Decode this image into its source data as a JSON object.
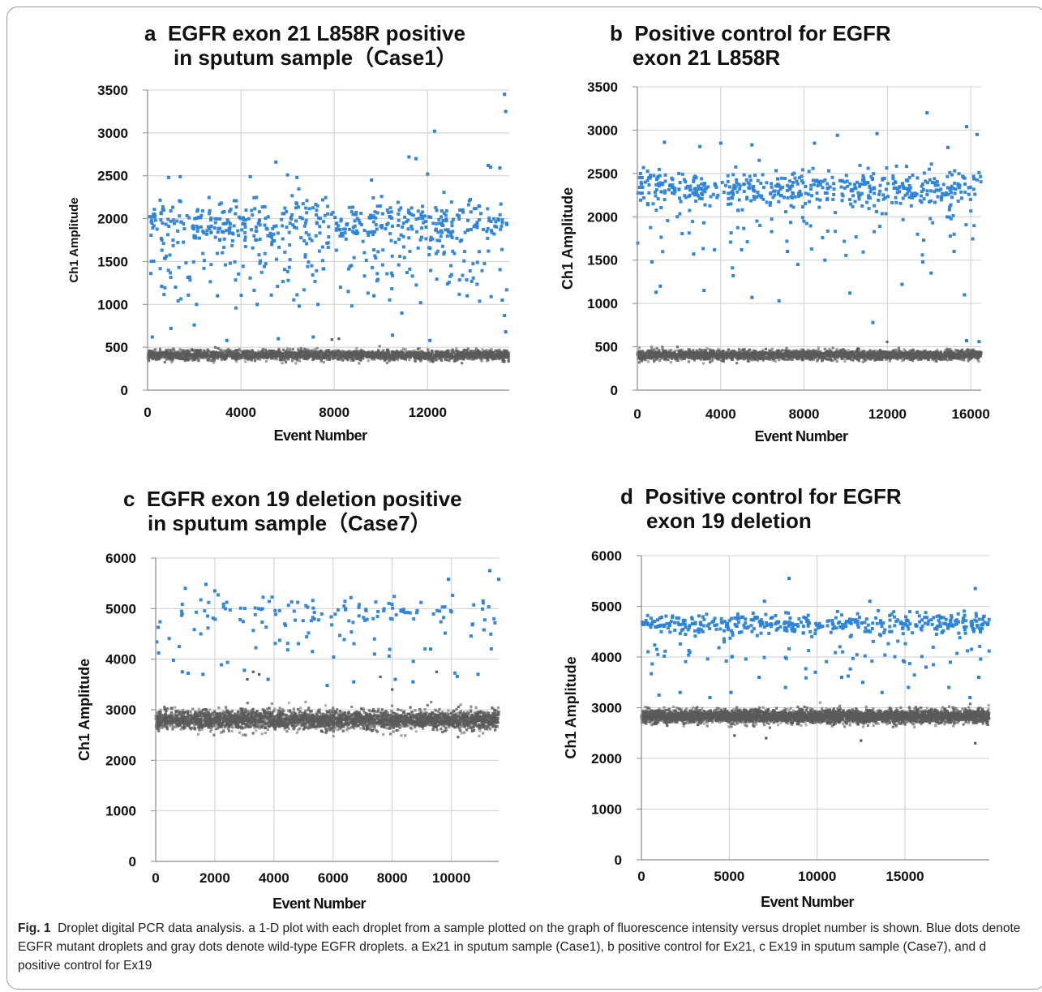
{
  "figure_caption": {
    "label": "Fig. 1",
    "text": "Droplet digital PCR data analysis. a 1-D plot with each droplet from a sample plotted on the graph of fluorescence intensity versus droplet number is shown. Blue dots denote EGFR mutant droplets and gray dots denote wild-type EGFR droplets. a Ex21 in sputum sample (Case1), b positive control for Ex21, c Ex19 in sputum sample (Case7), and d positive control for Ex19"
  },
  "colors": {
    "mutant": "#2b82d9",
    "wild_type": "#5a5a5a",
    "grid": "#cfcfcf"
  },
  "chart_data": [
    {
      "type": "scatter",
      "panel": "a",
      "title_line1": "EGFR exon 21 L858R positive",
      "title_line2": "in sputum sample（Case1）",
      "xlabel": "Event Number",
      "ylabel": "Ch1 Amplitude",
      "xlim": [
        0,
        15500
      ],
      "ylim": [
        0,
        3500
      ],
      "xticks": [
        0,
        4000,
        8000,
        12000
      ],
      "yticks": [
        0,
        500,
        1000,
        1500,
        2000,
        2500,
        3000,
        3500
      ],
      "grid": true,
      "series": [
        {
          "role": "mutant",
          "approx_count": 620,
          "points": [
            [
              12300,
              3020
            ],
            [
              15300,
              3450
            ],
            [
              15350,
              3250
            ],
            [
              5500,
              2660
            ],
            [
              11200,
              2720
            ],
            [
              11500,
              2700
            ],
            [
              14600,
              2620
            ],
            [
              14700,
              2600
            ],
            [
              15100,
              2590
            ],
            [
              900,
              2480
            ],
            [
              1400,
              2490
            ],
            [
              4400,
              2490
            ],
            [
              6000,
              2510
            ],
            [
              6400,
              2480
            ],
            [
              9600,
              2450
            ],
            [
              12000,
              2520
            ],
            [
              600,
              1210
            ],
            [
              1200,
              1200
            ],
            [
              2100,
              1000
            ],
            [
              3000,
              1100
            ],
            [
              4700,
              1000
            ],
            [
              6500,
              980
            ],
            [
              7300,
              1000
            ],
            [
              8600,
              1150
            ],
            [
              9700,
              1100
            ],
            [
              10900,
              900
            ],
            [
              11700,
              1020
            ],
            [
              13700,
              1100
            ],
            [
              15200,
              1050
            ],
            [
              15300,
              870
            ],
            [
              15350,
              680
            ],
            [
              200,
              620
            ],
            [
              1000,
              720
            ],
            [
              2000,
              760
            ],
            [
              3400,
              580
            ],
            [
              5600,
              600
            ],
            [
              7100,
              620
            ],
            [
              10500,
              640
            ],
            [
              12100,
              580
            ]
          ],
          "bands": [
            {
              "center": 1950,
              "spread": 260,
              "weight": 0.7
            },
            {
              "center": 1500,
              "spread": 420,
              "weight": 0.3
            }
          ]
        },
        {
          "role": "wild_type",
          "approx_count": 2600,
          "bands": [
            {
              "center": 410,
              "spread": 55
            }
          ],
          "points": [
            [
              7900,
              590
            ],
            [
              8200,
              600
            ]
          ]
        }
      ]
    },
    {
      "type": "scatter",
      "panel": "b",
      "title_line1": "Positive control for EGFR",
      "title_line2": "exon 21 L858R",
      "xlabel": "Event Number",
      "ylabel": "Ch1 Amplitude",
      "xlim": [
        0,
        16500
      ],
      "ylim": [
        0,
        3500
      ],
      "xticks": [
        0,
        4000,
        8000,
        12000,
        16000
      ],
      "yticks": [
        0,
        500,
        1000,
        1500,
        2000,
        2500,
        3000,
        3500
      ],
      "grid": true,
      "series": [
        {
          "role": "mutant",
          "approx_count": 560,
          "points": [
            [
              13900,
              3200
            ],
            [
              15800,
              3040
            ],
            [
              16300,
              2950
            ],
            [
              1300,
              2860
            ],
            [
              3000,
              2810
            ],
            [
              4000,
              2850
            ],
            [
              5500,
              2830
            ],
            [
              8500,
              2850
            ],
            [
              9600,
              2940
            ],
            [
              11500,
              2960
            ],
            [
              14900,
              2800
            ],
            [
              700,
              1480
            ],
            [
              900,
              1130
            ],
            [
              1100,
              1200
            ],
            [
              2700,
              1570
            ],
            [
              3200,
              1150
            ],
            [
              3700,
              1620
            ],
            [
              4600,
              1320
            ],
            [
              5000,
              1620
            ],
            [
              5500,
              1070
            ],
            [
              6800,
              1030
            ],
            [
              7200,
              1600
            ],
            [
              7700,
              1450
            ],
            [
              9000,
              1500
            ],
            [
              10200,
              1120
            ],
            [
              11300,
              780
            ],
            [
              12700,
              1220
            ],
            [
              13700,
              1480
            ],
            [
              14100,
              1350
            ],
            [
              15200,
              1600
            ],
            [
              15700,
              1100
            ],
            [
              15800,
              570
            ],
            [
              16400,
              560
            ]
          ],
          "bands": [
            {
              "center": 2340,
              "spread": 190,
              "weight": 0.85
            },
            {
              "center": 1950,
              "spread": 380,
              "weight": 0.15
            }
          ]
        },
        {
          "role": "wild_type",
          "approx_count": 2800,
          "bands": [
            {
              "center": 405,
              "spread": 50
            }
          ],
          "points": []
        }
      ]
    },
    {
      "type": "scatter",
      "panel": "c",
      "title_line1": "EGFR exon 19 deletion positive",
      "title_line2": "in sputum sample（Case7）",
      "xlabel": "Event Number",
      "ylabel": "Ch1 Amplitude",
      "xlim": [
        0,
        11600
      ],
      "ylim": [
        0,
        6000
      ],
      "xticks": [
        0,
        2000,
        4000,
        6000,
        8000,
        10000
      ],
      "yticks": [
        0,
        1000,
        2000,
        3000,
        4000,
        5000,
        6000
      ],
      "grid": true,
      "series": [
        {
          "role": "mutant",
          "approx_count": 150,
          "points": [
            [
              11300,
              5750
            ],
            [
              11600,
              5580
            ],
            [
              1700,
              5480
            ],
            [
              9900,
              5580
            ],
            [
              1000,
              5400
            ],
            [
              2000,
              5350
            ],
            [
              600,
              3980
            ],
            [
              900,
              3750
            ],
            [
              1100,
              3720
            ],
            [
              1600,
              3700
            ],
            [
              3000,
              3780
            ],
            [
              3800,
              3600
            ],
            [
              5300,
              4150
            ],
            [
              5800,
              3480
            ],
            [
              6700,
              3550
            ],
            [
              7400,
              4100
            ],
            [
              8100,
              3600
            ],
            [
              8700,
              3550
            ],
            [
              9300,
              4200
            ],
            [
              10200,
              3660
            ],
            [
              10900,
              3700
            ],
            [
              11100,
              4580
            ]
          ],
          "bands": [
            {
              "center": 4950,
              "spread": 260,
              "weight": 0.75
            },
            {
              "center": 4400,
              "spread": 450,
              "weight": 0.25
            }
          ]
        },
        {
          "role": "wild_type",
          "approx_count": 3400,
          "bands": [
            {
              "center": 2800,
              "spread": 170
            }
          ],
          "points": [
            [
              3300,
              3750
            ],
            [
              3500,
              3700
            ],
            [
              7600,
              3650
            ],
            [
              8000,
              3400
            ],
            [
              9500,
              3750
            ],
            [
              3100,
              3600
            ]
          ]
        }
      ]
    },
    {
      "type": "scatter",
      "panel": "d",
      "title_line1": "Positive control for EGFR",
      "title_line2": "exon 19 deletion",
      "xlabel": "Event Number",
      "ylabel": "Ch1 Amplitude",
      "xlim": [
        0,
        19800
      ],
      "ylim": [
        0,
        6000
      ],
      "xticks": [
        0,
        5000,
        10000,
        15000
      ],
      "yticks": [
        0,
        1000,
        2000,
        3000,
        4000,
        5000,
        6000
      ],
      "grid": true,
      "series": [
        {
          "role": "mutant",
          "approx_count": 470,
          "points": [
            [
              8400,
              5550
            ],
            [
              19000,
              5350
            ],
            [
              7000,
              5100
            ],
            [
              13000,
              5100
            ],
            [
              1000,
              3250
            ],
            [
              2200,
              3300
            ],
            [
              3900,
              3200
            ],
            [
              5100,
              3300
            ],
            [
              6700,
              3600
            ],
            [
              8200,
              3400
            ],
            [
              9900,
              3700
            ],
            [
              11400,
              3600
            ],
            [
              12600,
              3500
            ],
            [
              13700,
              3300
            ],
            [
              15200,
              3400
            ],
            [
              16200,
              3800
            ],
            [
              17500,
              3400
            ],
            [
              18700,
              3200
            ],
            [
              19200,
              3600
            ]
          ],
          "bands": [
            {
              "center": 4650,
              "spread": 180,
              "weight": 0.85
            },
            {
              "center": 4100,
              "spread": 450,
              "weight": 0.15
            }
          ]
        },
        {
          "role": "wild_type",
          "approx_count": 4200,
          "bands": [
            {
              "center": 2830,
              "spread": 120
            }
          ],
          "points": [
            [
              5300,
              2450
            ],
            [
              12500,
              2350
            ],
            [
              19000,
              2300
            ],
            [
              7100,
              2400
            ]
          ]
        }
      ]
    }
  ]
}
